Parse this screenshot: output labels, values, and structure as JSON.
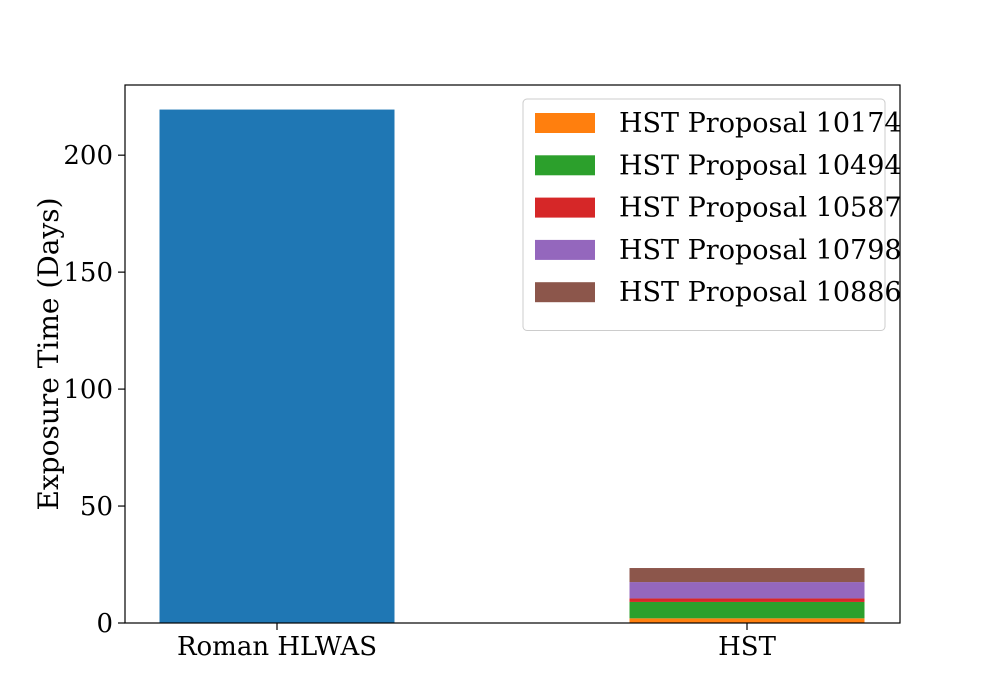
{
  "chart_data": {
    "type": "bar",
    "stacked": true,
    "categories": [
      "Roman HLWAS",
      "HST"
    ],
    "ylabel": "Exposure Time (Days)",
    "xlabel": "",
    "ylim": [
      0,
      230
    ],
    "yticks": [
      0,
      50,
      100,
      150,
      200
    ],
    "grid": false,
    "legend_placement": "top-right",
    "series": [
      {
        "category": "Roman HLWAS",
        "values": [
          219.5,
          0
        ],
        "color": "#1f77b4"
      },
      {
        "name": "HST Proposal 10174",
        "values": [
          0,
          2.0
        ],
        "color": "#ff7f0e"
      },
      {
        "name": "HST Proposal 10494",
        "values": [
          0,
          7.0
        ],
        "color": "#2ca02c"
      },
      {
        "name": "HST Proposal 10587",
        "values": [
          0,
          1.5
        ],
        "color": "#d62728"
      },
      {
        "name": "HST Proposal 10798",
        "values": [
          0,
          7.0
        ],
        "color": "#9467bd"
      },
      {
        "name": "HST Proposal 10886",
        "values": [
          0,
          6.0
        ],
        "color": "#8c564b"
      }
    ]
  }
}
